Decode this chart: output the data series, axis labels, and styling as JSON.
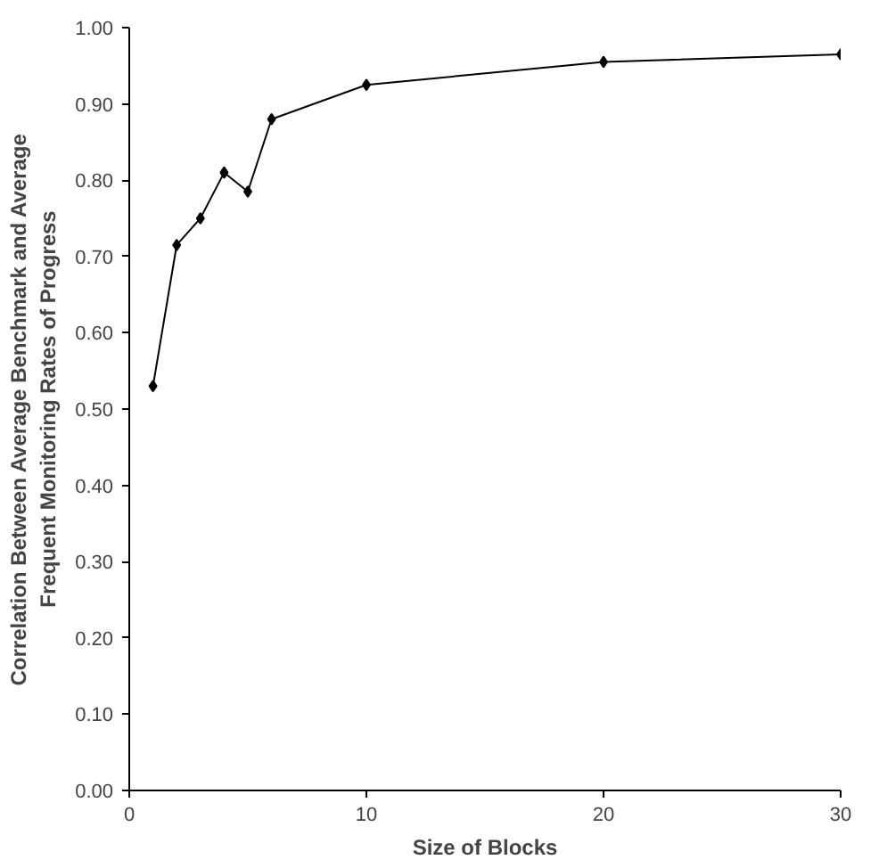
{
  "chart_data": {
    "type": "line",
    "xlabel": "Size of Blocks",
    "ylabel": "Correlation Between Average Benchmark and Average\nFrequent Monitoring Rates of Progress",
    "x": [
      1,
      2,
      3,
      4,
      5,
      6,
      10,
      20,
      30
    ],
    "series": [
      {
        "color": "#000000",
        "values": [
          0.53,
          0.715,
          0.75,
          0.81,
          0.785,
          0.88,
          0.925,
          0.955,
          0.965
        ]
      }
    ],
    "xlim": [
      0,
      30
    ],
    "xticks": [
      0,
      10,
      20,
      30
    ],
    "ylim": [
      0,
      1
    ],
    "yticks": [
      {
        "value": 0,
        "label": "0.00"
      },
      {
        "value": 0.1,
        "label": "0.10"
      },
      {
        "value": 0.2,
        "label": "0.20"
      },
      {
        "value": 0.3,
        "label": "0.30"
      },
      {
        "value": 0.4,
        "label": "0.40"
      },
      {
        "value": 0.5,
        "label": "0.50"
      },
      {
        "value": 0.6,
        "label": "0.60"
      },
      {
        "value": 0.7,
        "label": "0.70"
      },
      {
        "value": 0.8,
        "label": "0.80"
      },
      {
        "value": 0.9,
        "label": "0.90"
      },
      {
        "value": 1,
        "label": "1.00"
      }
    ],
    "grid": false,
    "marker": "diamond",
    "line_style": "solid"
  }
}
